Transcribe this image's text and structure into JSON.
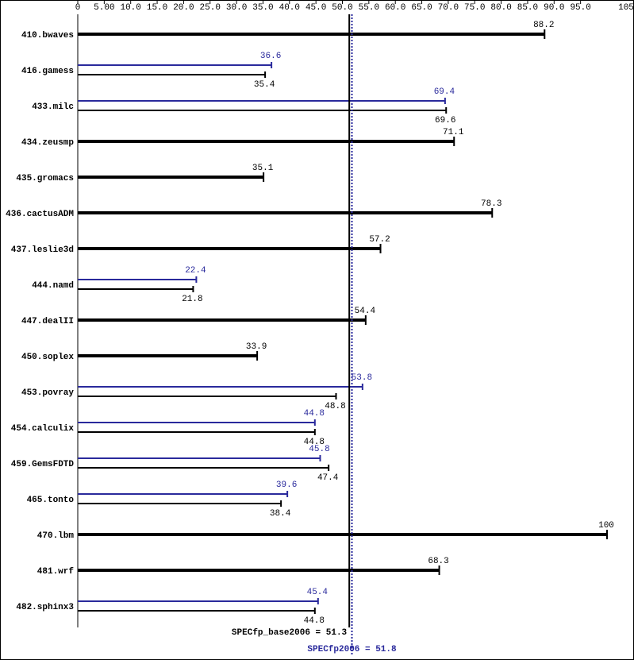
{
  "chart_data": {
    "type": "bar",
    "orientation": "horizontal",
    "categories": [
      "410.bwaves",
      "416.gamess",
      "433.milc",
      "434.zeusmp",
      "435.gromacs",
      "436.cactusADM",
      "437.leslie3d",
      "444.namd",
      "447.dealII",
      "450.soplex",
      "453.povray",
      "454.calculix",
      "459.GemsFDTD",
      "465.tonto",
      "470.lbm",
      "481.wrf",
      "482.sphinx3"
    ],
    "series": [
      {
        "color": "#2a2a9c",
        "values": [
          null,
          36.6,
          69.4,
          null,
          null,
          null,
          null,
          22.4,
          null,
          null,
          53.8,
          44.8,
          45.8,
          39.6,
          null,
          null,
          45.4
        ]
      },
      {
        "color": "#000000",
        "values": [
          88.2,
          35.4,
          69.6,
          71.1,
          35.1,
          78.3,
          57.2,
          21.8,
          54.4,
          33.9,
          48.8,
          44.8,
          47.4,
          38.4,
          100,
          68.3,
          44.8
        ]
      }
    ],
    "xlim": [
      0,
      105
    ],
    "xticks": [
      0,
      {
        "value": 5,
        "label": "5.00"
      },
      {
        "value": 10,
        "label": "10.0"
      },
      {
        "value": 15,
        "label": "15.0"
      },
      {
        "value": 20,
        "label": "20.0"
      },
      {
        "value": 25,
        "label": "25.0"
      },
      {
        "value": 30,
        "label": "30.0"
      },
      {
        "value": 35,
        "label": "35.0"
      },
      {
        "value": 40,
        "label": "40.0"
      },
      {
        "value": 45,
        "label": "45.0"
      },
      {
        "value": 50,
        "label": "50.0"
      },
      {
        "value": 55,
        "label": "55.0"
      },
      {
        "value": 60,
        "label": "60.0"
      },
      {
        "value": 65,
        "label": "65.0"
      },
      {
        "value": 70,
        "label": "70.0"
      },
      {
        "value": 75,
        "label": "75.0"
      },
      {
        "value": 80,
        "label": "80.0"
      },
      {
        "value": 85,
        "label": "85.0"
      },
      {
        "value": 90,
        "label": "90.0"
      },
      {
        "value": 95,
        "label": "95.0"
      },
      105
    ],
    "reference_lines": [
      {
        "value": 51.3,
        "label": "SPECfp_base2006 = 51.3",
        "color": "#000000",
        "style": "solid"
      },
      {
        "value": 51.8,
        "label": "SPECfp2006 = 51.8",
        "color": "#2a2a9c",
        "style": "dotted"
      }
    ]
  }
}
